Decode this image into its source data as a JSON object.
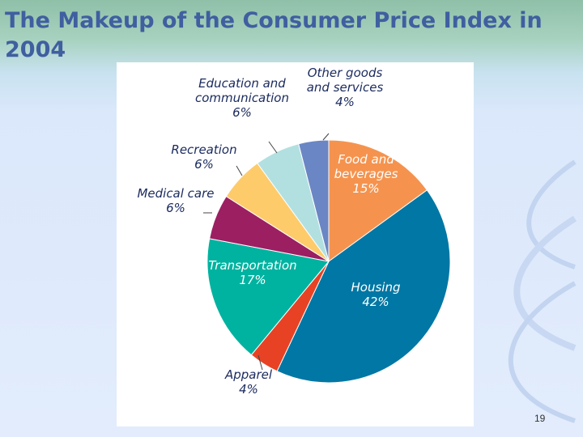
{
  "slide": {
    "title": "The Makeup of the Consumer Price Index in 2004",
    "page_number": "19"
  },
  "chart_data": {
    "type": "pie",
    "slices": [
      {
        "label_lines": [
          "Food and",
          "beverages"
        ],
        "value_text": "15%",
        "value": 15,
        "color": "#f5934e",
        "label_inside": true
      },
      {
        "label_lines": [
          "Housing"
        ],
        "value_text": "42%",
        "value": 42,
        "color": "#0077a4",
        "label_inside": true
      },
      {
        "label_lines": [
          "Apparel"
        ],
        "value_text": "4%",
        "value": 4,
        "color": "#e84224",
        "label_inside": false
      },
      {
        "label_lines": [
          "Transportation"
        ],
        "value_text": "17%",
        "value": 17,
        "color": "#00b3a0",
        "label_inside": true
      },
      {
        "label_lines": [
          "Medical care"
        ],
        "value_text": "6%",
        "value": 6,
        "color": "#9c1f62",
        "label_inside": false
      },
      {
        "label_lines": [
          "Recreation"
        ],
        "value_text": "6%",
        "value": 6,
        "color": "#fecb6b",
        "label_inside": false
      },
      {
        "label_lines": [
          "Education and",
          "communication"
        ],
        "value_text": "6%",
        "value": 6,
        "color": "#b2e0e0",
        "label_inside": false
      },
      {
        "label_lines": [
          "Other goods",
          "and services"
        ],
        "value_text": "4%",
        "value": 4,
        "color": "#6a86c4",
        "label_inside": false
      }
    ],
    "start_direction": "top",
    "direction": "clockwise",
    "legend": "none"
  }
}
